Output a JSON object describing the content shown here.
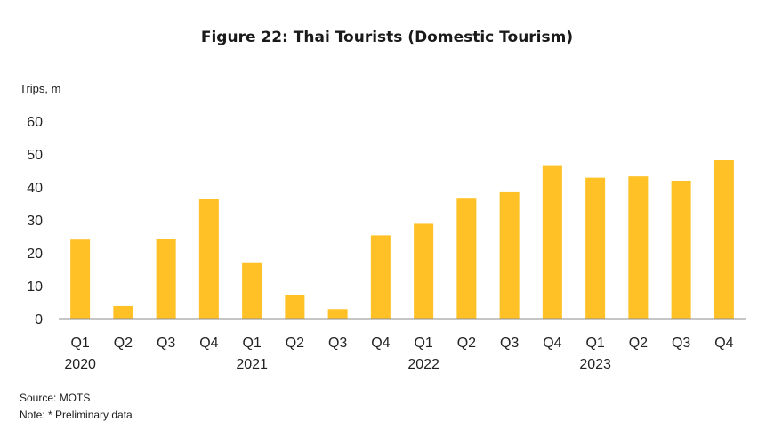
{
  "title": "Figure 22: Thai Tourists (Domestic Tourism)",
  "unit_label": "Trips, m",
  "source": "Source: MOTS",
  "note": "Note: * Preliminary data",
  "chart_data": {
    "type": "bar",
    "title": "Figure 22: Thai Tourists (Domestic Tourism)",
    "ylabel": "Trips, m",
    "xlabel": "",
    "ylim": [
      0,
      60
    ],
    "yticks": [
      0,
      10,
      20,
      30,
      40,
      50,
      60
    ],
    "grid": false,
    "legend": "none",
    "bar_color": "#FFC125",
    "categories": [
      "Q1",
      "Q2",
      "Q3",
      "Q4",
      "Q1",
      "Q2",
      "Q3",
      "Q4",
      "Q1",
      "Q2",
      "Q3",
      "Q4",
      "Q1",
      "Q2",
      "Q3",
      "Q4"
    ],
    "years": [
      {
        "label": "2020",
        "start_index": 0
      },
      {
        "label": "2021",
        "start_index": 4
      },
      {
        "label": "2022",
        "start_index": 8
      },
      {
        "label": "2023",
        "start_index": 12
      }
    ],
    "values": [
      24.0,
      3.8,
      24.3,
      36.3,
      17.1,
      7.3,
      2.9,
      25.3,
      28.8,
      36.7,
      38.4,
      46.6,
      42.8,
      43.2,
      41.9,
      48.1
    ]
  }
}
